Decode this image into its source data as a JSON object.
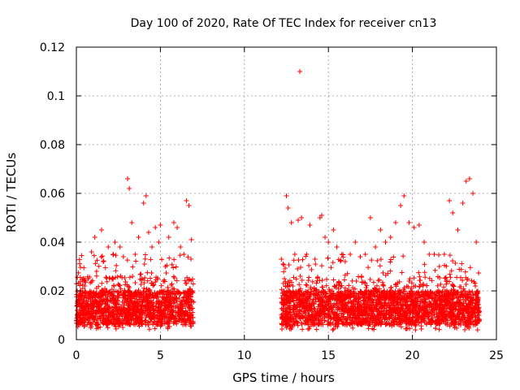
{
  "chart_data": {
    "type": "scatter",
    "title": "Day 100 of 2020, Rate Of TEC Index for receiver cn13",
    "xlabel": "GPS time / hours",
    "ylabel": "ROTI / TECUs",
    "xlim": [
      0,
      25
    ],
    "ylim": [
      0,
      0.12
    ],
    "xticks": [
      0,
      5,
      10,
      15,
      20,
      25
    ],
    "xtick_labels": [
      "0",
      "5",
      "10",
      "15",
      "20",
      "25"
    ],
    "yticks": [
      0,
      0.02,
      0.04,
      0.06,
      0.08,
      0.1,
      0.12
    ],
    "ytick_labels": [
      "0",
      "0.02",
      "0.04",
      "0.06",
      "0.08",
      "0.1",
      "0.12"
    ],
    "grid": true,
    "marker": "plus",
    "color": "#ff0000",
    "data_segments": [
      {
        "x_start": 0.0,
        "x_end": 7.0
      },
      {
        "x_start": 12.2,
        "x_end": 24.0
      }
    ],
    "series": [
      {
        "x": [
          0.05,
          0.3,
          0.5,
          0.7,
          0.9,
          1.1,
          1.2,
          1.5,
          1.6,
          1.9,
          2.2,
          2.3,
          2.6,
          2.8,
          3.05,
          3.15,
          3.3,
          3.5,
          3.7,
          4.0,
          4.15,
          4.3,
          4.5,
          4.7,
          4.9,
          5.0,
          5.3,
          5.5,
          5.8,
          6.0,
          6.2,
          6.4,
          6.55,
          6.7,
          6.85,
          12.2,
          12.3,
          12.5,
          12.6,
          12.8,
          13.0,
          13.2,
          13.3,
          13.4,
          13.7,
          13.9,
          14.2,
          14.5,
          14.6,
          14.8,
          15.0,
          15.3,
          15.5,
          15.8,
          16.0,
          16.3,
          16.6,
          16.9,
          17.2,
          17.5,
          17.8,
          18.1,
          18.4,
          18.7,
          19.0,
          19.3,
          19.5,
          19.8,
          20.1,
          20.4,
          20.7,
          21.0,
          21.3,
          21.6,
          21.9,
          22.2,
          22.4,
          22.7,
          23.0,
          23.2,
          23.4,
          23.6,
          23.8,
          0.4,
          1.3,
          2.0,
          3.1,
          3.6,
          4.3,
          5.2,
          6.1,
          6.8,
          12.5,
          13.3,
          14.0,
          14.7,
          15.6,
          16.4,
          17.3,
          18.2,
          19.2,
          20.0,
          20.8,
          21.7,
          22.5,
          23.3,
          23.9
        ],
        "y": [
          0.012,
          0.018,
          0.022,
          0.025,
          0.036,
          0.042,
          0.028,
          0.045,
          0.032,
          0.038,
          0.035,
          0.04,
          0.038,
          0.034,
          0.066,
          0.062,
          0.048,
          0.035,
          0.042,
          0.056,
          0.059,
          0.044,
          0.038,
          0.046,
          0.04,
          0.047,
          0.03,
          0.042,
          0.048,
          0.046,
          0.038,
          0.035,
          0.057,
          0.055,
          0.041,
          0.033,
          0.031,
          0.059,
          0.054,
          0.048,
          0.035,
          0.049,
          0.11,
          0.05,
          0.035,
          0.047,
          0.033,
          0.05,
          0.051,
          0.042,
          0.04,
          0.045,
          0.038,
          0.035,
          0.032,
          0.035,
          0.04,
          0.034,
          0.035,
          0.05,
          0.038,
          0.045,
          0.04,
          0.042,
          0.048,
          0.055,
          0.059,
          0.048,
          0.046,
          0.047,
          0.04,
          0.035,
          0.035,
          0.03,
          0.035,
          0.057,
          0.052,
          0.045,
          0.056,
          0.065,
          0.066,
          0.06,
          0.04,
          0.009,
          0.012,
          0.01,
          0.014,
          0.011,
          0.015,
          0.012,
          0.013,
          0.01,
          0.009,
          0.012,
          0.014,
          0.011,
          0.013,
          0.012,
          0.01,
          0.014,
          0.012,
          0.011,
          0.013,
          0.012,
          0.01,
          0.014,
          0.011
        ]
      }
    ]
  }
}
